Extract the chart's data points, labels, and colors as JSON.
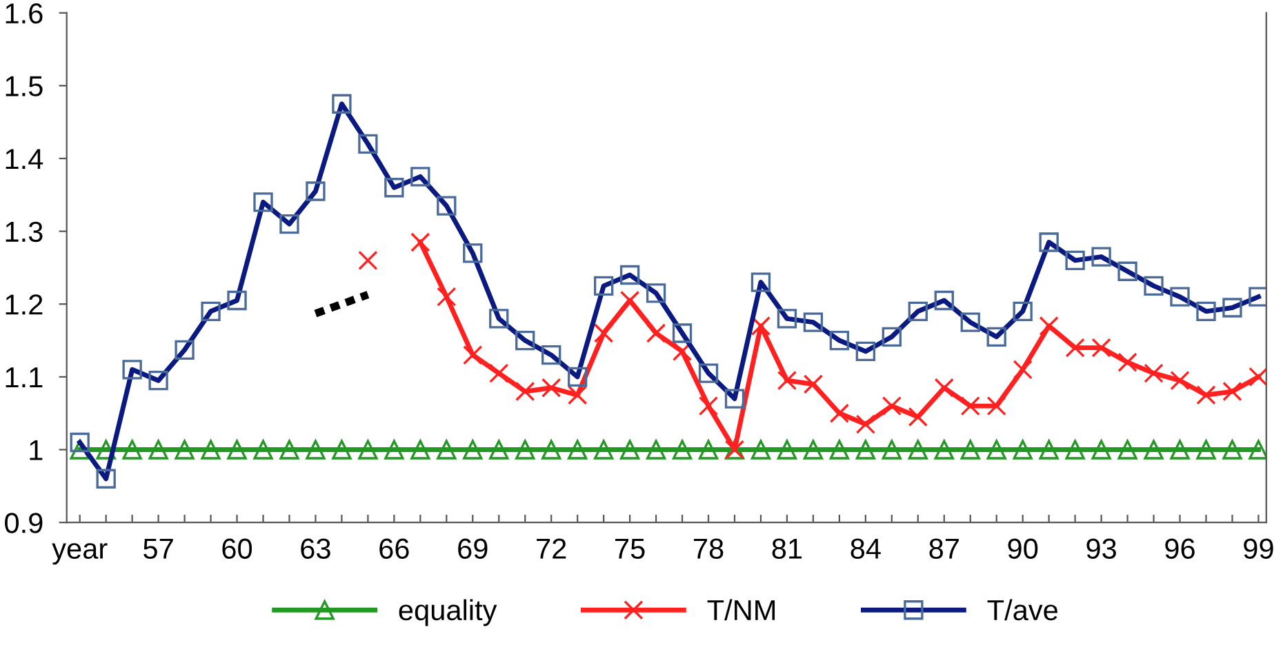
{
  "chart_data": {
    "type": "line",
    "categories": [
      "year",
      null,
      null,
      "57",
      null,
      null,
      "60",
      null,
      null,
      "63",
      null,
      null,
      "66",
      null,
      null,
      "69",
      null,
      null,
      "72",
      null,
      null,
      "75",
      null,
      null,
      "78",
      null,
      null,
      "81",
      null,
      null,
      "84",
      null,
      null,
      "87",
      null,
      null,
      "90",
      null,
      null,
      "93",
      null,
      null,
      "96",
      null,
      null,
      "99"
    ],
    "ylim": [
      0.9,
      1.6
    ],
    "yticks": [
      {
        "value": 0.9,
        "label": "0.9"
      },
      1,
      1.1,
      1.2,
      1.3,
      1.4,
      1.5,
      1.6
    ],
    "grid": false,
    "legend": "bottom",
    "line_style": "solid",
    "series": [
      {
        "name": "equality",
        "color": "#229922",
        "marker": "triangle",
        "values": [
          1,
          1,
          1,
          1,
          1,
          1,
          1,
          1,
          1,
          1,
          1,
          1,
          1,
          1,
          1,
          1,
          1,
          1,
          1,
          1,
          1,
          1,
          1,
          1,
          1,
          1,
          1,
          1,
          1,
          1,
          1,
          1,
          1,
          1,
          1,
          1,
          1,
          1,
          1,
          1,
          1,
          1,
          1,
          1,
          1,
          1
        ]
      },
      {
        "name": "T/NM",
        "color": "#ff2020",
        "marker": "cross",
        "values": [
          null,
          null,
          null,
          null,
          null,
          null,
          null,
          null,
          null,
          null,
          null,
          1.26,
          null,
          1.285,
          1.21,
          1.13,
          1.105,
          1.08,
          1.085,
          1.075,
          1.16,
          1.205,
          1.16,
          1.135,
          1.06,
          1.0,
          1.17,
          1.095,
          1.09,
          1.05,
          1.035,
          1.06,
          1.045,
          1.085,
          1.06,
          1.06,
          1.11,
          1.17,
          1.14,
          1.14,
          1.12,
          1.105,
          1.095,
          1.075,
          1.08,
          1.1
        ]
      },
      {
        "name": "T/ave",
        "color": "#0a1a80",
        "marker": "square",
        "values": [
          1.01,
          0.96,
          1.11,
          1.095,
          1.137,
          1.19,
          1.205,
          1.34,
          1.31,
          1.355,
          1.475,
          1.42,
          1.36,
          1.375,
          1.335,
          1.27,
          1.18,
          1.15,
          1.13,
          1.1,
          1.225,
          1.24,
          1.215,
          1.16,
          1.105,
          1.07,
          1.23,
          1.18,
          1.175,
          1.15,
          1.135,
          1.155,
          1.19,
          1.205,
          1.175,
          1.155,
          1.19,
          1.285,
          1.26,
          1.265,
          1.245,
          1.225,
          1.21,
          1.19,
          1.195,
          1.21
        ]
      },
      {
        "color": "#000000",
        "marker": "none",
        "line_style": "dotted",
        "values": [
          null,
          null,
          null,
          null,
          null,
          null,
          null,
          null,
          null,
          1.187,
          1.2,
          1.213,
          null,
          null,
          null,
          null,
          null,
          null,
          null,
          null,
          null,
          null,
          null,
          null,
          null,
          null,
          null,
          null,
          null,
          null,
          null,
          null,
          null,
          null,
          null,
          null,
          null,
          null,
          null,
          null,
          null,
          null,
          null,
          null,
          null,
          null
        ]
      }
    ]
  }
}
